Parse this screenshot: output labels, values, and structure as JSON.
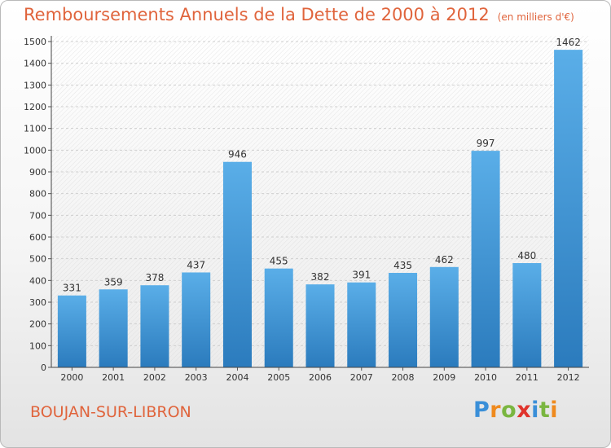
{
  "header": {
    "title": "Remboursements Annuels de la Dette de 2000 à 2012",
    "subtitle": "(en milliers d'€)"
  },
  "footer": {
    "commune": "BOUJAN-SUR-LIBRON",
    "logo_letters": [
      "P",
      "r",
      "o",
      "x",
      "i",
      "t",
      "i"
    ],
    "logo_colors": [
      "#3a8fd8",
      "#ef8a1e",
      "#7ab640",
      "#e0342c",
      "#3a8fd8",
      "#7ab640",
      "#ef8a1e"
    ]
  },
  "chart_data": {
    "type": "bar",
    "categories": [
      "2000",
      "2001",
      "2002",
      "2003",
      "2004",
      "2005",
      "2006",
      "2007",
      "2008",
      "2009",
      "2010",
      "2011",
      "2012"
    ],
    "values": [
      331,
      359,
      378,
      437,
      946,
      455,
      382,
      391,
      435,
      462,
      997,
      480,
      1462
    ],
    "data_labels": [
      "331",
      "359",
      "378",
      "437",
      "946",
      "455",
      "382",
      "391",
      "435",
      "462",
      "997",
      "480",
      "1462"
    ],
    "yticks": [
      "0",
      "100",
      "200",
      "300",
      "400",
      "500",
      "600",
      "700",
      "800",
      "900",
      "1000",
      "1100",
      "1200",
      "1300",
      "1400",
      "1500"
    ],
    "ylim": [
      0,
      1500
    ],
    "grid": true,
    "bar_color_top": "#5aaee8",
    "bar_color_bottom": "#2b7bbd"
  }
}
